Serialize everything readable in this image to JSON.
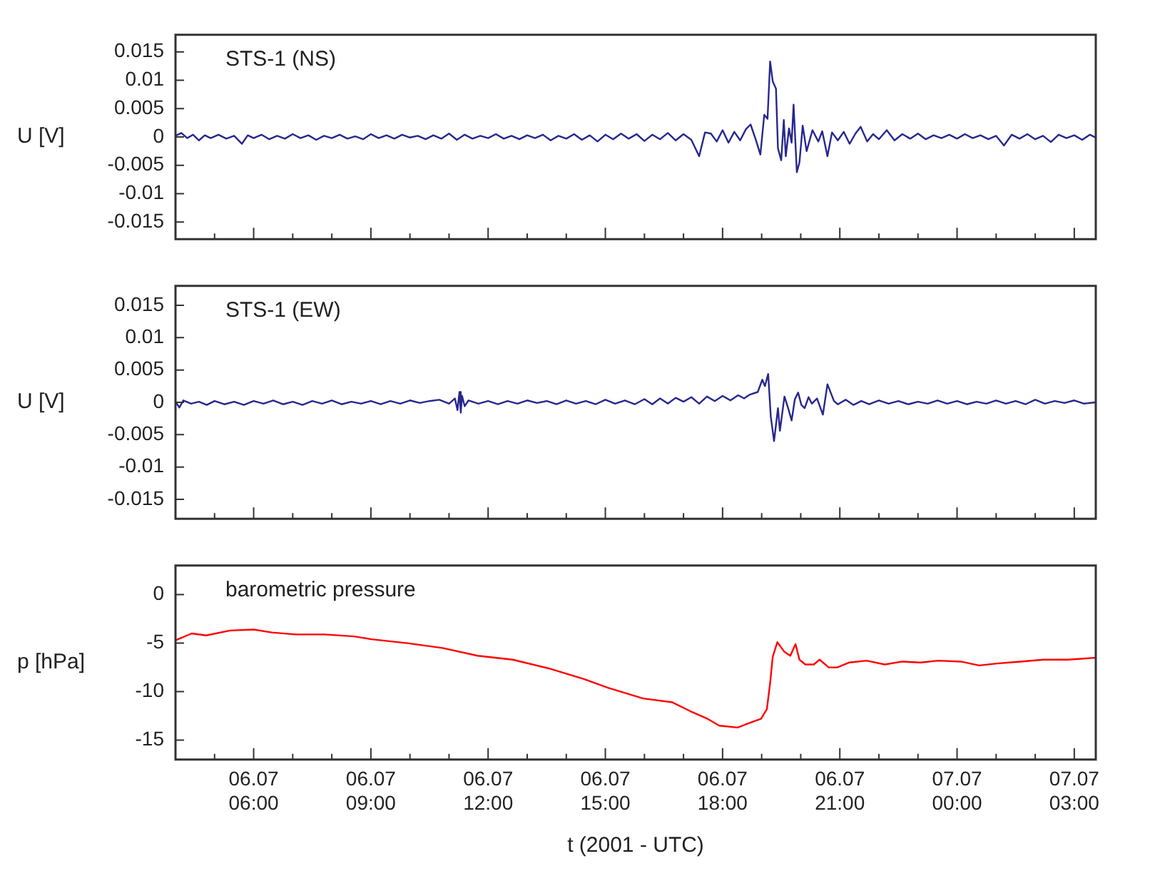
{
  "chart_data": [
    {
      "type": "line",
      "ylabel": "U [V]",
      "tick_labels": "y",
      "xlim": [
        "2001-07-06T04:00",
        "2001-07-07T03:33"
      ],
      "ylim": [
        -0.018,
        0.018
      ],
      "xticks": [
        {
          "value": "2001-07-06T05:00",
          "label": null
        },
        {
          "value": "2001-07-06T06:00",
          "label": null
        },
        {
          "value": "2001-07-06T07:00",
          "label": null
        },
        {
          "value": "2001-07-06T08:00",
          "label": null
        },
        {
          "value": "2001-07-06T09:00",
          "label": null
        },
        {
          "value": "2001-07-06T10:00",
          "label": null
        },
        {
          "value": "2001-07-06T11:00",
          "label": null
        },
        {
          "value": "2001-07-06T12:00",
          "label": null
        },
        {
          "value": "2001-07-06T13:00",
          "label": null
        },
        {
          "value": "2001-07-06T14:00",
          "label": null
        },
        {
          "value": "2001-07-06T15:00",
          "label": null
        },
        {
          "value": "2001-07-06T16:00",
          "label": null
        },
        {
          "value": "2001-07-06T17:00",
          "label": null
        },
        {
          "value": "2001-07-06T18:00",
          "label": null
        },
        {
          "value": "2001-07-06T19:00",
          "label": null
        },
        {
          "value": "2001-07-06T20:00",
          "label": null
        },
        {
          "value": "2001-07-06T21:00",
          "label": null
        },
        {
          "value": "2001-07-06T22:00",
          "label": null
        },
        {
          "value": "2001-07-06T23:00",
          "label": null
        },
        {
          "value": "2001-07-07T00:00",
          "label": null
        },
        {
          "value": "2001-07-07T01:00",
          "label": null
        },
        {
          "value": "2001-07-07T02:00",
          "label": null
        },
        {
          "value": "2001-07-07T03:00",
          "label": null
        }
      ],
      "yticks": [
        -0.015,
        -0.01,
        -0.005,
        0,
        0.005,
        0.01,
        0.015
      ],
      "series": [
        {
          "name": "STS-1 (NS)",
          "color": "#27278f",
          "x": [
            "2001-07-06T04:00",
            "2001-07-06T04:09",
            "2001-07-06T04:18",
            "2001-07-06T04:27",
            "2001-07-06T04:36",
            "2001-07-06T04:45",
            "2001-07-06T04:54",
            "2001-07-06T05:06",
            "2001-07-06T05:18",
            "2001-07-06T05:30",
            "2001-07-06T05:42",
            "2001-07-06T05:51",
            "2001-07-06T06:00",
            "2001-07-06T06:12",
            "2001-07-06T06:24",
            "2001-07-06T06:36",
            "2001-07-06T06:48",
            "2001-07-06T07:00",
            "2001-07-06T07:12",
            "2001-07-06T07:24",
            "2001-07-06T07:36",
            "2001-07-06T07:48",
            "2001-07-06T08:00",
            "2001-07-06T08:12",
            "2001-07-06T08:24",
            "2001-07-06T08:36",
            "2001-07-06T08:48",
            "2001-07-06T09:00",
            "2001-07-06T09:12",
            "2001-07-06T09:24",
            "2001-07-06T09:36",
            "2001-07-06T09:48",
            "2001-07-06T10:00",
            "2001-07-06T10:12",
            "2001-07-06T10:24",
            "2001-07-06T10:36",
            "2001-07-06T10:48",
            "2001-07-06T11:00",
            "2001-07-06T11:12",
            "2001-07-06T11:24",
            "2001-07-06T11:36",
            "2001-07-06T11:48",
            "2001-07-06T12:00",
            "2001-07-06T12:12",
            "2001-07-06T12:24",
            "2001-07-06T12:36",
            "2001-07-06T12:48",
            "2001-07-06T13:00",
            "2001-07-06T13:12",
            "2001-07-06T13:24",
            "2001-07-06T13:36",
            "2001-07-06T13:48",
            "2001-07-06T14:00",
            "2001-07-06T14:12",
            "2001-07-06T14:24",
            "2001-07-06T14:36",
            "2001-07-06T14:48",
            "2001-07-06T15:00",
            "2001-07-06T15:12",
            "2001-07-06T15:24",
            "2001-07-06T15:36",
            "2001-07-06T15:48",
            "2001-07-06T16:00",
            "2001-07-06T16:12",
            "2001-07-06T16:24",
            "2001-07-06T16:36",
            "2001-07-06T16:48",
            "2001-07-06T17:00",
            "2001-07-06T17:12",
            "2001-07-06T17:24",
            "2001-07-06T17:33",
            "2001-07-06T17:42",
            "2001-07-06T17:51",
            "2001-07-06T18:00",
            "2001-07-06T18:09",
            "2001-07-06T18:18",
            "2001-07-06T18:27",
            "2001-07-06T18:36",
            "2001-07-06T18:43",
            "2001-07-06T18:51",
            "2001-07-06T18:58",
            "2001-07-06T19:04",
            "2001-07-06T19:09",
            "2001-07-06T19:13",
            "2001-07-06T19:17",
            "2001-07-06T19:22",
            "2001-07-06T19:25",
            "2001-07-06T19:30",
            "2001-07-06T19:34",
            "2001-07-06T19:37",
            "2001-07-06T19:42",
            "2001-07-06T19:46",
            "2001-07-06T19:49",
            "2001-07-06T19:54",
            "2001-07-06T19:58",
            "2001-07-06T20:03",
            "2001-07-06T20:09",
            "2001-07-06T20:18",
            "2001-07-06T20:27",
            "2001-07-06T20:33",
            "2001-07-06T20:41",
            "2001-07-06T20:48",
            "2001-07-06T20:57",
            "2001-07-06T21:06",
            "2001-07-06T21:15",
            "2001-07-06T21:24",
            "2001-07-06T21:32",
            "2001-07-06T21:42",
            "2001-07-06T21:51",
            "2001-07-06T22:00",
            "2001-07-06T22:12",
            "2001-07-06T22:24",
            "2001-07-06T22:36",
            "2001-07-06T22:48",
            "2001-07-06T23:00",
            "2001-07-06T23:12",
            "2001-07-06T23:24",
            "2001-07-06T23:36",
            "2001-07-06T23:48",
            "2001-07-07T00:00",
            "2001-07-07T00:12",
            "2001-07-07T00:24",
            "2001-07-07T00:36",
            "2001-07-07T00:48",
            "2001-07-07T01:00",
            "2001-07-07T01:12",
            "2001-07-07T01:24",
            "2001-07-07T01:36",
            "2001-07-07T01:48",
            "2001-07-07T02:00",
            "2001-07-07T02:12",
            "2001-07-07T02:24",
            "2001-07-07T02:36",
            "2001-07-07T02:48",
            "2001-07-07T03:00",
            "2001-07-07T03:12",
            "2001-07-07T03:24",
            "2001-07-07T03:33"
          ],
          "values": [
            0.0002,
            0.0007,
            -0.0002,
            0.0004,
            -0.0006,
            0.0003,
            -0.0002,
            0.0004,
            -0.0003,
            0.0002,
            -0.0012,
            0.0003,
            -0.0002,
            0.0004,
            -0.0004,
            0.0002,
            -0.0003,
            0.0005,
            -0.0002,
            0.0003,
            -0.0005,
            0.0002,
            -0.0002,
            0.0004,
            -0.0003,
            0.0001,
            -0.0004,
            0.0005,
            -0.0002,
            0.0003,
            -0.0003,
            0.0004,
            -0.0001,
            0.0002,
            -0.0004,
            0.0003,
            -0.0003,
            0.0006,
            -0.0005,
            0.0004,
            -0.0003,
            0.0002,
            -0.0002,
            0.0005,
            -0.0003,
            0.0002,
            -0.0004,
            0.0003,
            -0.0002,
            0.0004,
            -0.0006,
            0.0002,
            -0.0003,
            0.0005,
            -0.0005,
            0.0003,
            -0.0008,
            0.0004,
            -0.0004,
            0.0006,
            -0.0003,
            0.0005,
            -0.0007,
            0.0004,
            -0.0004,
            0.0007,
            -0.0006,
            0.0005,
            -0.0005,
            -0.0034,
            0.0008,
            0.0006,
            -0.0008,
            0.0012,
            -0.001,
            0.0009,
            -0.0006,
            0.0014,
            0.0022,
            -0.0005,
            -0.0031,
            0.0039,
            0.0032,
            0.0133,
            0.0098,
            0.0085,
            -0.002,
            -0.0041,
            0.003,
            -0.0034,
            0.0015,
            -0.001,
            0.0057,
            -0.0062,
            -0.0045,
            0.002,
            -0.0025,
            0.0012,
            -0.0008,
            0.001,
            -0.0034,
            0.0008,
            -0.0006,
            0.0009,
            -0.0012,
            0.0006,
            0.0018,
            -0.0008,
            0.0005,
            -0.0004,
            0.0012,
            -0.0006,
            0.0005,
            -0.0003,
            0.0006,
            -0.0004,
            0.0003,
            -0.0002,
            0.0004,
            -0.0003,
            0.0005,
            -0.0002,
            0.0003,
            -0.0004,
            0.0002,
            -0.0015,
            0.0004,
            -0.0003,
            0.0005,
            -0.0004,
            0.0002,
            -0.0009,
            0.0004,
            -0.0002,
            0.0003,
            -0.0005,
            0.0004,
            -0.0001
          ]
        }
      ]
    },
    {
      "type": "line",
      "ylabel": "U [V]",
      "tick_labels": "y",
      "xlim": [
        "2001-07-06T04:00",
        "2001-07-07T03:33"
      ],
      "ylim": [
        -0.018,
        0.018
      ],
      "xticks": [
        {
          "value": "2001-07-06T05:00",
          "label": null
        },
        {
          "value": "2001-07-06T06:00",
          "label": null
        },
        {
          "value": "2001-07-06T07:00",
          "label": null
        },
        {
          "value": "2001-07-06T08:00",
          "label": null
        },
        {
          "value": "2001-07-06T09:00",
          "label": null
        },
        {
          "value": "2001-07-06T10:00",
          "label": null
        },
        {
          "value": "2001-07-06T11:00",
          "label": null
        },
        {
          "value": "2001-07-06T12:00",
          "label": null
        },
        {
          "value": "2001-07-06T13:00",
          "label": null
        },
        {
          "value": "2001-07-06T14:00",
          "label": null
        },
        {
          "value": "2001-07-06T15:00",
          "label": null
        },
        {
          "value": "2001-07-06T16:00",
          "label": null
        },
        {
          "value": "2001-07-06T17:00",
          "label": null
        },
        {
          "value": "2001-07-06T18:00",
          "label": null
        },
        {
          "value": "2001-07-06T19:00",
          "label": null
        },
        {
          "value": "2001-07-06T20:00",
          "label": null
        },
        {
          "value": "2001-07-06T21:00",
          "label": null
        },
        {
          "value": "2001-07-06T22:00",
          "label": null
        },
        {
          "value": "2001-07-06T23:00",
          "label": null
        },
        {
          "value": "2001-07-07T00:00",
          "label": null
        },
        {
          "value": "2001-07-07T01:00",
          "label": null
        },
        {
          "value": "2001-07-07T02:00",
          "label": null
        },
        {
          "value": "2001-07-07T03:00",
          "label": null
        }
      ],
      "yticks": [
        -0.015,
        -0.01,
        -0.005,
        0,
        0.005,
        0.01,
        0.015
      ],
      "series": [
        {
          "name": "STS-1 (EW)",
          "color": "#27278f",
          "x": [
            "2001-07-06T04:00",
            "2001-07-06T04:06",
            "2001-07-06T04:12",
            "2001-07-06T04:24",
            "2001-07-06T04:36",
            "2001-07-06T04:48",
            "2001-07-06T05:00",
            "2001-07-06T05:15",
            "2001-07-06T05:30",
            "2001-07-06T05:45",
            "2001-07-06T06:00",
            "2001-07-06T06:15",
            "2001-07-06T06:30",
            "2001-07-06T06:45",
            "2001-07-06T07:00",
            "2001-07-06T07:15",
            "2001-07-06T07:30",
            "2001-07-06T07:45",
            "2001-07-06T08:00",
            "2001-07-06T08:15",
            "2001-07-06T08:30",
            "2001-07-06T08:45",
            "2001-07-06T09:00",
            "2001-07-06T09:15",
            "2001-07-06T09:30",
            "2001-07-06T09:45",
            "2001-07-06T10:00",
            "2001-07-06T10:15",
            "2001-07-06T10:30",
            "2001-07-06T10:45",
            "2001-07-06T11:00",
            "2001-07-06T11:09",
            "2001-07-06T11:13",
            "2001-07-06T11:16",
            "2001-07-06T11:18",
            "2001-07-06T11:20",
            "2001-07-06T11:24",
            "2001-07-06T11:30",
            "2001-07-06T11:45",
            "2001-07-06T12:00",
            "2001-07-06T12:15",
            "2001-07-06T12:30",
            "2001-07-06T12:45",
            "2001-07-06T13:00",
            "2001-07-06T13:15",
            "2001-07-06T13:30",
            "2001-07-06T13:45",
            "2001-07-06T14:00",
            "2001-07-06T14:15",
            "2001-07-06T14:30",
            "2001-07-06T14:45",
            "2001-07-06T15:00",
            "2001-07-06T15:15",
            "2001-07-06T15:30",
            "2001-07-06T15:45",
            "2001-07-06T16:00",
            "2001-07-06T16:12",
            "2001-07-06T16:24",
            "2001-07-06T16:36",
            "2001-07-06T16:48",
            "2001-07-06T17:00",
            "2001-07-06T17:12",
            "2001-07-06T17:24",
            "2001-07-06T17:36",
            "2001-07-06T17:48",
            "2001-07-06T18:00",
            "2001-07-06T18:12",
            "2001-07-06T18:24",
            "2001-07-06T18:33",
            "2001-07-06T18:42",
            "2001-07-06T18:54",
            "2001-07-06T19:01",
            "2001-07-06T19:05",
            "2001-07-06T19:10",
            "2001-07-06T19:14",
            "2001-07-06T19:19",
            "2001-07-06T19:25",
            "2001-07-06T19:28",
            "2001-07-06T19:35",
            "2001-07-06T19:41",
            "2001-07-06T19:46",
            "2001-07-06T19:51",
            "2001-07-06T19:56",
            "2001-07-06T20:01",
            "2001-07-06T20:06",
            "2001-07-06T20:12",
            "2001-07-06T20:17",
            "2001-07-06T20:25",
            "2001-07-06T20:34",
            "2001-07-06T20:41",
            "2001-07-06T20:51",
            "2001-07-06T20:57",
            "2001-07-06T21:09",
            "2001-07-06T21:21",
            "2001-07-06T21:33",
            "2001-07-06T21:45",
            "2001-07-06T22:00",
            "2001-07-06T22:15",
            "2001-07-06T22:30",
            "2001-07-06T22:45",
            "2001-07-06T23:00",
            "2001-07-06T23:15",
            "2001-07-06T23:30",
            "2001-07-06T23:45",
            "2001-07-07T00:00",
            "2001-07-07T00:15",
            "2001-07-07T00:30",
            "2001-07-07T00:45",
            "2001-07-07T01:00",
            "2001-07-07T01:15",
            "2001-07-07T01:30",
            "2001-07-07T01:45",
            "2001-07-07T02:00",
            "2001-07-07T02:15",
            "2001-07-07T02:30",
            "2001-07-07T02:45",
            "2001-07-07T03:00",
            "2001-07-07T03:15",
            "2001-07-07T03:33"
          ],
          "values": [
            0.0001,
            -0.0008,
            0.0003,
            -0.0002,
            0.0001,
            -0.0004,
            0.0002,
            -0.0003,
            0.0001,
            -0.0004,
            0.0002,
            -0.0002,
            0.0003,
            -0.0003,
            0.0001,
            -0.0004,
            0.0002,
            -0.0002,
            0.0003,
            -0.0003,
            0.0001,
            -0.0002,
            0.0002,
            -0.0003,
            0.0002,
            -0.0002,
            0.0003,
            -0.0001,
            0.0002,
            0.0004,
            -0.0002,
            0.0006,
            -0.0012,
            0.0016,
            -0.0016,
            0.001,
            -0.0006,
            0.0003,
            -0.0002,
            0.0002,
            -0.0003,
            0.0002,
            -0.0002,
            0.0003,
            -0.0001,
            0.0002,
            -0.0003,
            0.0003,
            -0.0002,
            0.0002,
            -0.0003,
            0.0004,
            -0.0002,
            0.0003,
            -0.0003,
            0.0005,
            -0.0003,
            0.0006,
            -0.0002,
            0.0007,
            0.0001,
            0.0008,
            -0.0002,
            0.0009,
            0.0002,
            0.001,
            0.0003,
            0.0011,
            0.0006,
            0.0012,
            0.0016,
            0.0035,
            0.0025,
            0.0044,
            -0.0022,
            -0.006,
            -0.0009,
            -0.0044,
            0.0009,
            -0.001,
            -0.0028,
            0.0005,
            0.0015,
            -0.0004,
            -0.0009,
            0.0008,
            -0.0002,
            0.0006,
            -0.0019,
            0.0028,
            0.0002,
            -0.0003,
            0.0004,
            -0.0004,
            0.0002,
            -0.0003,
            0.0003,
            -0.0002,
            0.0002,
            -0.0003,
            0.0001,
            -0.0002,
            0.0003,
            -0.0002,
            0.0002,
            -0.0003,
            0.0001,
            -0.0002,
            0.0003,
            -0.0002,
            0.0002,
            -0.0003,
            0.0004,
            -0.0002,
            0.0002,
            -0.0001,
            0.0003,
            -0.0002,
            0
          ]
        }
      ]
    },
    {
      "type": "line",
      "xlabel": "t (2001 - UTC)",
      "ylabel": "p [hPa]",
      "xlim": [
        "2001-07-06T04:00",
        "2001-07-07T03:33"
      ],
      "ylim": [
        -17,
        3
      ],
      "xticks": [
        {
          "value": "2001-07-06T05:00",
          "label": null
        },
        {
          "value": "2001-07-06T06:00",
          "label": "06.07\n06:00"
        },
        {
          "value": "2001-07-06T07:00",
          "label": null
        },
        {
          "value": "2001-07-06T08:00",
          "label": null
        },
        {
          "value": "2001-07-06T09:00",
          "label": "06.07\n09:00"
        },
        {
          "value": "2001-07-06T10:00",
          "label": null
        },
        {
          "value": "2001-07-06T11:00",
          "label": null
        },
        {
          "value": "2001-07-06T12:00",
          "label": "06.07\n12:00"
        },
        {
          "value": "2001-07-06T13:00",
          "label": null
        },
        {
          "value": "2001-07-06T14:00",
          "label": null
        },
        {
          "value": "2001-07-06T15:00",
          "label": "06.07\n15:00"
        },
        {
          "value": "2001-07-06T16:00",
          "label": null
        },
        {
          "value": "2001-07-06T17:00",
          "label": null
        },
        {
          "value": "2001-07-06T18:00",
          "label": "06.07\n18:00"
        },
        {
          "value": "2001-07-06T19:00",
          "label": null
        },
        {
          "value": "2001-07-06T20:00",
          "label": null
        },
        {
          "value": "2001-07-06T21:00",
          "label": "06.07\n21:00"
        },
        {
          "value": "2001-07-06T22:00",
          "label": null
        },
        {
          "value": "2001-07-06T23:00",
          "label": null
        },
        {
          "value": "2001-07-07T00:00",
          "label": "07.07\n00:00"
        },
        {
          "value": "2001-07-07T01:00",
          "label": null
        },
        {
          "value": "2001-07-07T02:00",
          "label": null
        },
        {
          "value": "2001-07-07T03:00",
          "label": "07.07\n03:00"
        }
      ],
      "yticks": [
        -15,
        -10,
        -5,
        0
      ],
      "series": [
        {
          "name": "barometric pressure",
          "color": "#ff0000",
          "x": [
            "2001-07-06T04:00",
            "2001-07-06T04:25",
            "2001-07-06T04:47",
            "2001-07-06T05:24",
            "2001-07-06T06:00",
            "2001-07-06T06:28",
            "2001-07-06T07:04",
            "2001-07-06T07:49",
            "2001-07-06T08:34",
            "2001-07-06T09:01",
            "2001-07-06T09:56",
            "2001-07-06T10:50",
            "2001-07-06T11:44",
            "2001-07-06T12:38",
            "2001-07-06T13:33",
            "2001-07-06T14:27",
            "2001-07-06T15:04",
            "2001-07-06T15:58",
            "2001-07-06T16:43",
            "2001-07-06T17:10",
            "2001-07-06T17:37",
            "2001-07-06T17:55",
            "2001-07-06T18:23",
            "2001-07-06T18:46",
            "2001-07-06T18:59",
            "2001-07-06T19:08",
            "2001-07-06T19:13",
            "2001-07-06T19:17",
            "2001-07-06T19:24",
            "2001-07-06T19:35",
            "2001-07-06T19:44",
            "2001-07-06T19:52",
            "2001-07-06T19:58",
            "2001-07-06T20:07",
            "2001-07-06T20:20",
            "2001-07-06T20:29",
            "2001-07-06T20:43",
            "2001-07-06T20:56",
            "2001-07-06T21:14",
            "2001-07-06T21:41",
            "2001-07-06T22:09",
            "2001-07-06T22:36",
            "2001-07-06T23:04",
            "2001-07-06T23:31",
            "2001-07-07T00:06",
            "2001-07-07T00:34",
            "2001-07-07T01:01",
            "2001-07-07T01:37",
            "2001-07-07T02:13",
            "2001-07-07T02:50",
            "2001-07-07T03:33"
          ],
          "values": [
            -4.7,
            -4.0,
            -4.2,
            -3.7,
            -3.6,
            -3.9,
            -4.1,
            -4.1,
            -4.3,
            -4.6,
            -5.0,
            -5.5,
            -6.3,
            -6.7,
            -7.6,
            -8.7,
            -9.6,
            -10.7,
            -11.1,
            -12.0,
            -12.8,
            -13.5,
            -13.7,
            -13.1,
            -12.8,
            -11.8,
            -9.1,
            -6.4,
            -4.9,
            -5.9,
            -6.3,
            -5.1,
            -6.7,
            -7.2,
            -7.2,
            -6.7,
            -7.5,
            -7.5,
            -7.0,
            -6.8,
            -7.2,
            -6.9,
            -7.0,
            -6.8,
            -6.9,
            -7.3,
            -7.1,
            -6.9,
            -6.7,
            -6.7,
            -6.5
          ]
        }
      ]
    }
  ]
}
